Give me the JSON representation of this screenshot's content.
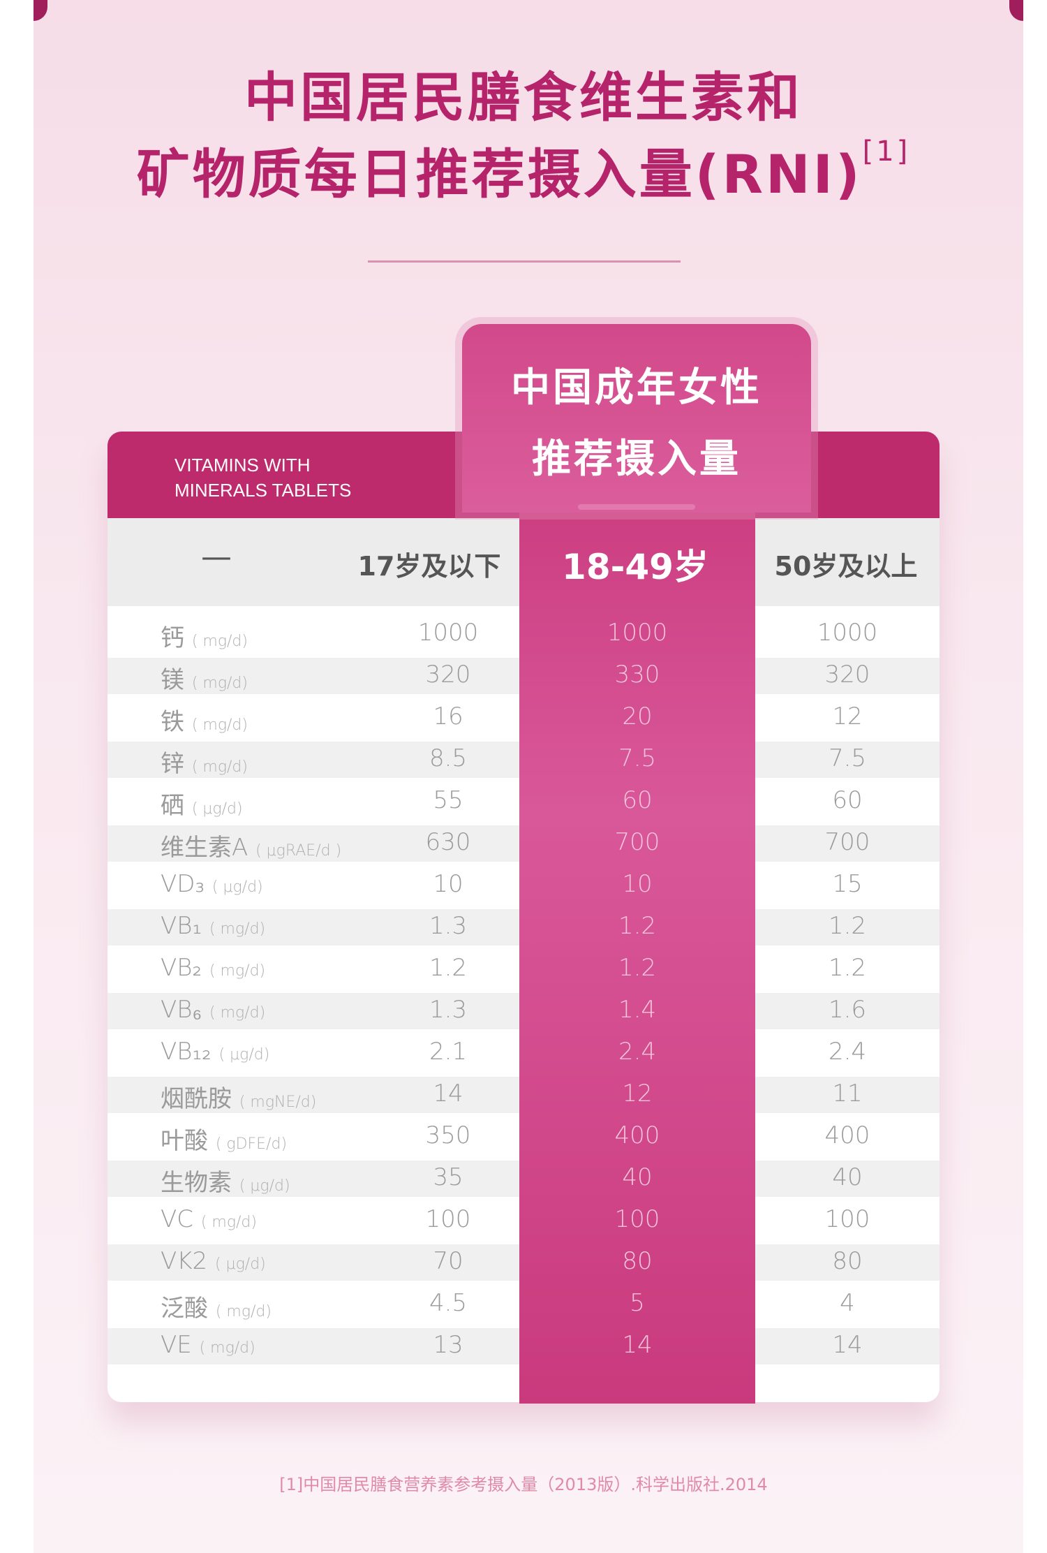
{
  "title": {
    "line1": "中国居民膳食维生素和",
    "line2": "矿物质每日推荐摄入量(RNI)",
    "sup": "[1]"
  },
  "header": {
    "label_line1": "VITAMINS WITH",
    "label_line2": "MINERALS TABLETS",
    "highlight_line1": "中国成年女性",
    "highlight_line2": "推荐摄入量"
  },
  "columns": [
    "—",
    "17岁及以下",
    "18-49岁",
    "50岁及以上"
  ],
  "rows": [
    {
      "name": "钙",
      "unit": "( mg/d)",
      "v1": "1000",
      "v2": "1000",
      "v3": "1000"
    },
    {
      "name": "镁",
      "unit": "( mg/d)",
      "v1": "320",
      "v2": "330",
      "v3": "320"
    },
    {
      "name": "铁",
      "unit": "( mg/d)",
      "v1": "16",
      "v2": "20",
      "v3": "12"
    },
    {
      "name": "锌",
      "unit": "( mg/d)",
      "v1": "8.5",
      "v2": "7.5",
      "v3": "7.5"
    },
    {
      "name": "硒",
      "unit": "( μg/d)",
      "v1": "55",
      "v2": "60",
      "v3": "60"
    },
    {
      "name": "维生素A",
      "unit": "( μgRAE/d )",
      "v1": "630",
      "v2": "700",
      "v3": "700"
    },
    {
      "name": "VD₃",
      "unit": " ( μg/d)",
      "v1": "10",
      "v2": "10",
      "v3": "15"
    },
    {
      "name": "VB₁",
      "unit": "( mg/d)",
      "v1": "1.3",
      "v2": "1.2",
      "v3": "1.2"
    },
    {
      "name": "VB₂",
      "unit": "( mg/d)",
      "v1": "1.2",
      "v2": "1.2",
      "v3": "1.2"
    },
    {
      "name": "VB₆",
      "unit": "( mg/d)",
      "v1": "1.3",
      "v2": "1.4",
      "v3": "1.6"
    },
    {
      "name": "VB₁₂",
      "unit": "( μg/d)",
      "v1": "2.1",
      "v2": "2.4",
      "v3": "2.4"
    },
    {
      "name": "烟酰胺",
      "unit": "( mgNE/d)",
      "v1": "14",
      "v2": "12",
      "v3": "11"
    },
    {
      "name": "叶酸",
      "unit": "( gDFE/d)",
      "v1": "350",
      "v2": "400",
      "v3": "400"
    },
    {
      "name": "生物素",
      "unit": "( μg/d)",
      "v1": "35",
      "v2": "40",
      "v3": "40"
    },
    {
      "name": "VC",
      "unit": "( mg/d)",
      "v1": "100",
      "v2": "100",
      "v3": "100"
    },
    {
      "name": "VK2",
      "unit": "( μg/d)",
      "v1": "70",
      "v2": "80",
      "v3": "80"
    },
    {
      "name": "泛酸",
      "unit": "( mg/d)",
      "v1": "4.5",
      "v2": "5",
      "v3": "4"
    },
    {
      "name": "VE",
      "unit": "( mg/d)",
      "v1": "13",
      "v2": "14",
      "v3": "14"
    }
  ],
  "footnote": "[1]中国居民膳食营养素参考摄入量（2013版）.科学出版社.2014",
  "colors": {
    "accent": "#be2b6d",
    "title": "#b5246a",
    "highlight_column": "#d04a8a"
  }
}
